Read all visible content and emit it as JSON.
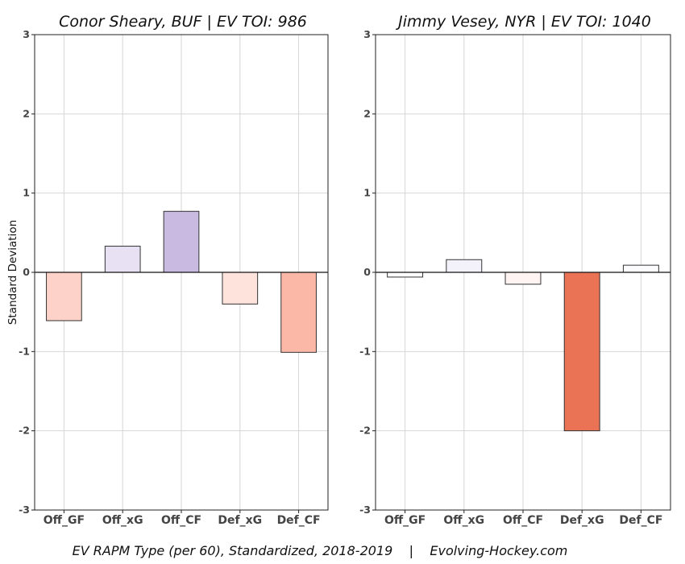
{
  "caption": "EV RAPM Type (per 60), Standardized, 2018-2019    |    Evolving-Hockey.com",
  "ylabel": "Standard Deviation",
  "chart_data": [
    {
      "type": "bar",
      "title": "Conor Sheary, BUF  |  EV TOI: 986",
      "categories": [
        "Off_GF",
        "Off_xG",
        "Off_CF",
        "Def_xG",
        "Def_CF"
      ],
      "values": [
        -0.61,
        0.33,
        0.77,
        -0.4,
        -1.01
      ],
      "colors": [
        "#fdd3c9",
        "#e7e1f3",
        "#c9bae2",
        "#fee3dc",
        "#fcb8a6"
      ],
      "ylim": [
        -3,
        3
      ],
      "yticks": [
        3,
        2,
        1,
        0,
        -1,
        -2,
        -3
      ],
      "grid": true
    },
    {
      "type": "bar",
      "title": "Jimmy Vesey, NYR  |  EV TOI: 1040",
      "categories": [
        "Off_GF",
        "Off_xG",
        "Off_CF",
        "Def_xG",
        "Def_CF"
      ],
      "values": [
        -0.06,
        0.16,
        -0.15,
        -2.0,
        0.09
      ],
      "colors": [
        "#ffffff",
        "#f3f1f9",
        "#fff4f1",
        "#ea7255",
        "#fbfafd"
      ],
      "ylim": [
        -3,
        3
      ],
      "yticks": [
        3,
        2,
        1,
        0,
        -1,
        -2,
        -3
      ],
      "grid": true
    }
  ]
}
